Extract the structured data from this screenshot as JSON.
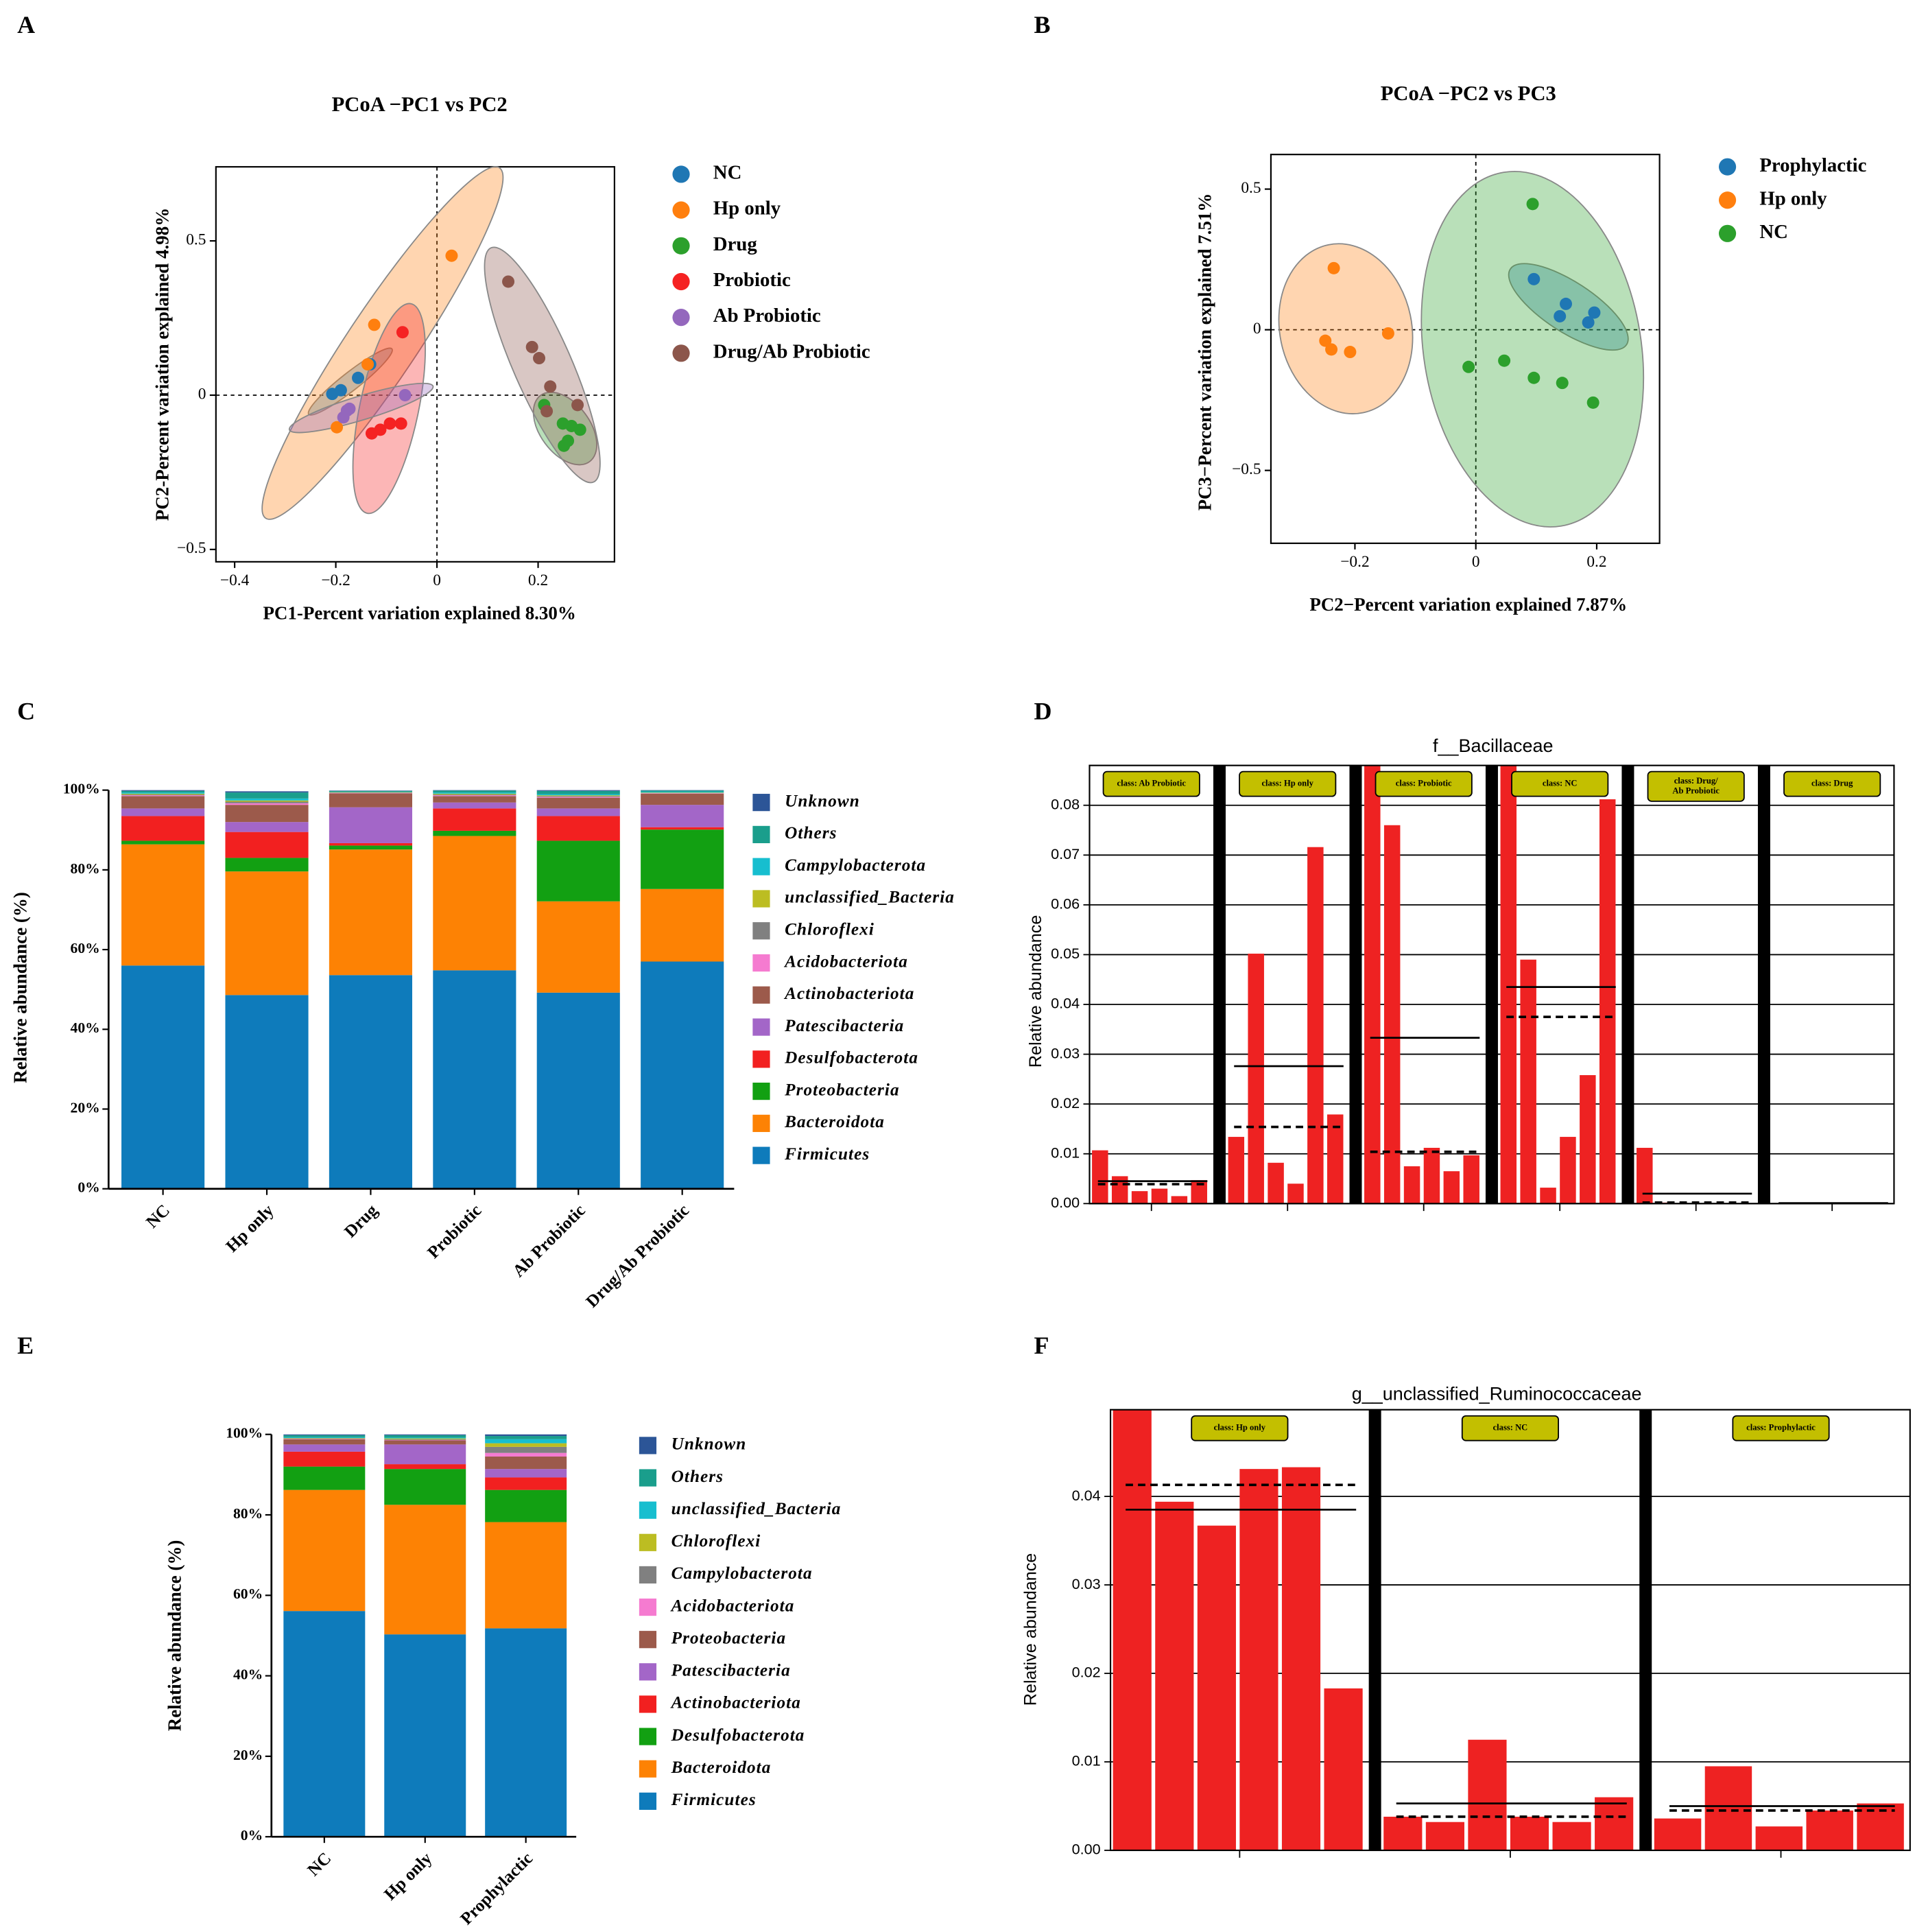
{
  "chart_data": [
    {
      "panel": "A",
      "type": "scatter",
      "title": "PCoA −PC1 vs PC2",
      "x_label": "PC1-Percent variation explained 8.30%",
      "y_label": "PC2-Percent variation explained 4.98%",
      "xlim": [
        -0.437,
        0.351
      ],
      "ylim": [
        -0.54,
        0.74
      ],
      "xticks": [
        {
          "value": -0.4,
          "label": "−0.4"
        },
        {
          "value": -0.2,
          "label": "−0.2"
        },
        0,
        0.2
      ],
      "yticks": [
        {
          "value": -0.5,
          "label": "−0.5"
        },
        0,
        0.5
      ],
      "series": [
        {
          "name": "NC",
          "color": "#1f77b4",
          "x": [
            -0.207,
            -0.19,
            -0.156,
            -0.132
          ],
          "values": [
            0.004,
            0.016,
            0.056,
            0.1
          ]
        },
        {
          "name": "Hp only",
          "color": "#ff7f0e",
          "x": [
            0.029,
            -0.124,
            -0.137,
            -0.198
          ],
          "values": [
            0.452,
            0.228,
            0.1,
            -0.104
          ]
        },
        {
          "name": "Drug",
          "color": "#2ca02c",
          "x": [
            0.212,
            0.249,
            0.266,
            0.283,
            0.259,
            0.251
          ],
          "values": [
            -0.032,
            -0.092,
            -0.1,
            -0.112,
            -0.148,
            -0.164
          ]
        },
        {
          "name": "Probiotic",
          "color": "#f52222",
          "x": [
            -0.068,
            -0.129,
            -0.112,
            -0.093,
            -0.071
          ],
          "values": [
            0.204,
            -0.124,
            -0.112,
            -0.092,
            -0.092
          ]
        },
        {
          "name": "Ab Probiotic",
          "color": "#9467bd",
          "x": [
            -0.173,
            -0.185,
            -0.063,
            -0.178
          ],
          "values": [
            -0.044,
            -0.072,
            0.0,
            -0.05
          ]
        },
        {
          "name": "Drug/Ab Probiotic",
          "color": "#8c564b",
          "x": [
            0.141,
            0.188,
            0.202,
            0.224,
            0.217,
            0.278
          ],
          "values": [
            0.368,
            0.156,
            0.12,
            0.028,
            -0.052,
            -0.032
          ]
        }
      ]
    },
    {
      "panel": "B",
      "type": "scatter",
      "title": "PCoA −PC2 vs PC3",
      "x_label": "PC2−Percent variation explained 7.87%",
      "y_label": "PC3−Percent variation explained 7.51%",
      "xlim": [
        -0.339,
        0.304
      ],
      "ylim": [
        -0.759,
        0.623
      ],
      "xticks": [
        {
          "value": -0.2,
          "label": "−0.2"
        },
        0,
        0.2
      ],
      "yticks": [
        {
          "value": -0.5,
          "label": "−0.5"
        },
        0,
        0.5
      ],
      "series": [
        {
          "name": "Prophylactic",
          "color": "#1f77b4",
          "x": [
            0.096,
            0.149,
            0.139,
            0.186,
            0.196
          ],
          "values": [
            0.18,
            0.092,
            0.048,
            0.026,
            0.061
          ]
        },
        {
          "name": "Hp only",
          "color": "#ff7f0e",
          "x": [
            -0.235,
            -0.249,
            -0.239,
            -0.208,
            -0.145
          ],
          "values": [
            0.219,
            -0.039,
            -0.07,
            -0.079,
            -0.013
          ]
        },
        {
          "name": "NC",
          "color": "#2ca02c",
          "x": [
            0.094,
            -0.012,
            0.047,
            0.096,
            0.143,
            0.194
          ],
          "values": [
            0.447,
            -0.132,
            -0.11,
            -0.171,
            -0.189,
            -0.259
          ]
        }
      ]
    },
    {
      "panel": "C",
      "type": "stacked_bar",
      "y_label": "Relative abundance (%)",
      "categories": [
        "NC",
        "Hp only",
        "Drug",
        "Probiotic",
        "Ab Probiotic",
        "Drug/Ab Probiotic"
      ],
      "ylim": [
        0,
        100
      ],
      "yticks": [
        {
          "value": 0,
          "label": "0%"
        },
        {
          "value": 20,
          "label": "20%"
        },
        {
          "value": 40,
          "label": "40%"
        },
        {
          "value": 60,
          "label": "60%"
        },
        {
          "value": 80,
          "label": "80%"
        },
        {
          "value": 100,
          "label": "100%"
        }
      ],
      "series": [
        {
          "name": "Firmicutes",
          "color": "#0e7bbb",
          "values": [
            56,
            48.6,
            53.6,
            54.8,
            49.2,
            57
          ]
        },
        {
          "name": "Bacteroidota",
          "color": "#fd8204",
          "values": [
            30.4,
            31,
            31.5,
            33.7,
            22.9,
            18.2
          ]
        },
        {
          "name": "Proteobacteria",
          "color": "#12a012",
          "values": [
            0.9,
            3.4,
            1,
            1.3,
            15.2,
            14.9
          ]
        },
        {
          "name": "Desulfobacterota",
          "color": "#f22020",
          "values": [
            6.2,
            6.5,
            0.6,
            5.6,
            6.2,
            0.6
          ]
        },
        {
          "name": "Patescibacteria",
          "color": "#a366c8",
          "values": [
            1.9,
            2.5,
            9,
            1.5,
            1.9,
            5.6
          ]
        },
        {
          "name": "Actinobacteriota",
          "color": "#9c5a4b",
          "values": [
            3.1,
            4.3,
            3.5,
            1.6,
            2.7,
            2.8
          ]
        },
        {
          "name": "Acidobacteriota",
          "color": "#f57bd0",
          "values": [
            0.2,
            0.4,
            0.1,
            0.2,
            0.2,
            0.1
          ]
        },
        {
          "name": "Chloroflexi",
          "color": "#808080",
          "values": [
            0.2,
            0.4,
            0.1,
            0.2,
            0.2,
            0.1
          ]
        },
        {
          "name": "unclassified_Bacteria",
          "color": "#bcbd22",
          "values": [
            0.2,
            0.3,
            0.1,
            0.2,
            0.2,
            0.1
          ]
        },
        {
          "name": "Campylobacterota",
          "color": "#17becf",
          "values": [
            0.3,
            0.5,
            0.1,
            0.3,
            0.3,
            0.2
          ]
        },
        {
          "name": "Others",
          "color": "#1a9e8c",
          "values": [
            0.4,
            1.5,
            0.2,
            0.5,
            0.8,
            0.3
          ]
        },
        {
          "name": "Unknown",
          "color": "#2c5597",
          "values": [
            0.2,
            0.3,
            0.1,
            0.1,
            0.2,
            0.1
          ]
        }
      ]
    },
    {
      "panel": "D",
      "type": "class_bar",
      "title": "f__Bacillaceae",
      "y_label": "Relative abundance",
      "ylim": [
        0,
        0.088
      ],
      "yticks": [
        {
          "value": 0,
          "label": "0.00"
        },
        0.01,
        0.02,
        0.03,
        0.04,
        0.05,
        0.06,
        0.07,
        0.08
      ],
      "bar_color": "#ee2222",
      "label_color": "#c3bf00",
      "groups": [
        {
          "label": [
            "class: Ab Probiotic"
          ],
          "values": [
            0.0107,
            0.0055,
            0.0025,
            0.003,
            0.0015,
            0.0047
          ],
          "mean": 0.0045,
          "median": 0.0039
        },
        {
          "label": [
            "class: Hp only"
          ],
          "values": [
            0.0134,
            0.0502,
            0.0082,
            0.004,
            0.0716,
            0.0179
          ],
          "mean": 0.0276,
          "median": 0.0154
        },
        {
          "label": [
            "class: Probiotic"
          ],
          "values": [
            0.089,
            0.076,
            0.0075,
            0.0112,
            0.0065,
            0.0097
          ],
          "mean": 0.0333,
          "median": 0.0104
        },
        {
          "label": [
            "class: NC"
          ],
          "values": [
            0.09,
            0.049,
            0.0032,
            0.0134,
            0.0258,
            0.0812
          ],
          "mean": 0.0435,
          "median": 0.0375
        },
        {
          "label": [
            "class: Drug/",
            "Ab Probiotic"
          ],
          "values": [
            0.0112,
            0.0002,
            0.0001,
            0.0,
            0.0,
            0.0
          ],
          "mean": 0.002,
          "median": 0.0002
        },
        {
          "label": [
            "class: Drug"
          ],
          "values": [
            0.0,
            0.0,
            0.0,
            0.0,
            0.0,
            0.0
          ],
          "mean": 0.0001,
          "median": 0.0
        }
      ]
    },
    {
      "panel": "E",
      "type": "stacked_bar",
      "y_label": "Relative abundance (%)",
      "categories": [
        "NC",
        "Hp only",
        "Prophylactic"
      ],
      "ylim": [
        0,
        100
      ],
      "yticks": [
        {
          "value": 0,
          "label": "0%"
        },
        {
          "value": 20,
          "label": "20%"
        },
        {
          "value": 40,
          "label": "40%"
        },
        {
          "value": 60,
          "label": "60%"
        },
        {
          "value": 80,
          "label": "80%"
        },
        {
          "value": 100,
          "label": "100%"
        }
      ],
      "series": [
        {
          "name": "Firmicutes",
          "color": "#0e7bbb",
          "values": [
            56.1,
            50.3,
            51.8
          ]
        },
        {
          "name": "Bacteroidota",
          "color": "#fd8204",
          "values": [
            30.1,
            32.2,
            26.4
          ]
        },
        {
          "name": "Desulfobacterota",
          "color": "#12a012",
          "values": [
            5.8,
            8.9,
            8
          ]
        },
        {
          "name": "Actinobacteriota",
          "color": "#f22020",
          "values": [
            3.7,
            1.2,
            3.1
          ]
        },
        {
          "name": "Patescibacteria",
          "color": "#a366c8",
          "values": [
            1.8,
            4.9,
            2.1
          ]
        },
        {
          "name": "Proteobacteria",
          "color": "#9c5a4b",
          "values": [
            1.3,
            1,
            3.1
          ]
        },
        {
          "name": "Acidobacteriota",
          "color": "#f57bd0",
          "values": [
            0.1,
            0.1,
            0.9
          ]
        },
        {
          "name": "Campylobacterota",
          "color": "#808080",
          "values": [
            0.1,
            0.2,
            1.5
          ]
        },
        {
          "name": "Chloroflexi",
          "color": "#bcbd22",
          "values": [
            0.1,
            0.2,
            0.9
          ]
        },
        {
          "name": "unclassified_Bacteria",
          "color": "#17becf",
          "values": [
            0.2,
            0.2,
            1
          ]
        },
        {
          "name": "Others",
          "color": "#1a9e8c",
          "values": [
            0.5,
            0.6,
            0.8
          ]
        },
        {
          "name": "Unknown",
          "color": "#2c5597",
          "values": [
            0.2,
            0.2,
            0.4
          ]
        }
      ]
    },
    {
      "panel": "F",
      "type": "class_bar",
      "title": "g__unclassified_Ruminococcaceae",
      "y_label": "Relative abundance",
      "ylim": [
        0,
        0.0498
      ],
      "yticks": [
        {
          "value": 0,
          "label": "0.00"
        },
        0.01,
        0.02,
        0.03,
        0.04
      ],
      "bar_color": "#ee2222",
      "label_color": "#c3bf00",
      "groups": [
        {
          "label": [
            "class: Hp only"
          ],
          "values": [
            0.0502,
            0.0394,
            0.0367,
            0.0431,
            0.0433,
            0.0183
          ],
          "mean": 0.0385,
          "median": 0.0413
        },
        {
          "label": [
            "class: NC"
          ],
          "values": [
            0.0038,
            0.0032,
            0.0125,
            0.0038,
            0.0032,
            0.006
          ],
          "mean": 0.0053,
          "median": 0.0038
        },
        {
          "label": [
            "class: Prophylactic"
          ],
          "values": [
            0.0036,
            0.0095,
            0.0027,
            0.0045,
            0.0053
          ],
          "mean": 0.005,
          "median": 0.0045
        }
      ]
    }
  ]
}
